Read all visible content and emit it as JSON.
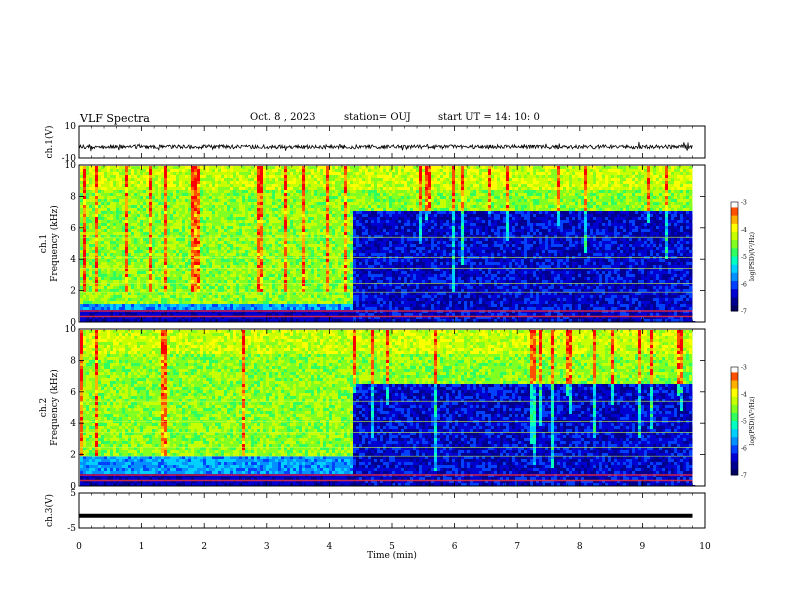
{
  "header": {
    "title": "VLF Spectra",
    "date": "Oct. 8 , 2023",
    "station": "station= OUJ",
    "start_ut": "start UT = 14: 10: 0"
  },
  "colorbar": {
    "label": "log(PSD)(V²/Hz)",
    "ticks": [
      "-3",
      "-4",
      "-5",
      "-6",
      "-7"
    ],
    "colors": [
      "#000080",
      "#0000ff",
      "#00a0ff",
      "#00ffd0",
      "#40ff40",
      "#c0ff00",
      "#ffff00",
      "#ff8000",
      "#ff0000",
      "#ffffff"
    ]
  },
  "chart_data": [
    {
      "type": "line",
      "ylabel": "ch.1(V)",
      "ytick_labels": [
        "10",
        "-10"
      ],
      "ylim": [
        -10,
        10
      ],
      "xlim": [
        0,
        10
      ],
      "description_level": -3,
      "series": [
        {
          "x": [
            0,
            9.8
          ],
          "y": [
            -3,
            -3
          ]
        }
      ]
    },
    {
      "type": "heatmap",
      "ylabel": "ch.1\nFrequency (kHz)",
      "ytick_labels": [
        "0",
        "2",
        "4",
        "6",
        "8",
        "10"
      ],
      "ylim": [
        0,
        10
      ],
      "xlim": [
        0,
        10
      ],
      "segments": [
        {
          "x_range": [
            0,
            4.35
          ],
          "level": "high",
          "freq_range": [
            1.2,
            10
          ]
        },
        {
          "x_range": [
            4.35,
            9.8
          ],
          "level": "low",
          "freq_range": [
            0,
            7.2
          ]
        }
      ]
    },
    {
      "type": "heatmap",
      "ylabel": "ch.2\nFrequency (kHz)",
      "ytick_labels": [
        "0",
        "2",
        "4",
        "6",
        "8",
        "10"
      ],
      "ylim": [
        0,
        10
      ],
      "xlim": [
        0,
        10
      ],
      "segments": [
        {
          "x_range": [
            0,
            4.35
          ],
          "level": "high",
          "freq_range": [
            2,
            10
          ]
        },
        {
          "x_range": [
            4.35,
            9.8
          ],
          "level": "low",
          "freq_range": [
            0,
            6.5
          ]
        }
      ]
    },
    {
      "type": "line",
      "ylabel": "ch.3(V)",
      "ytick_labels": [
        "5",
        "-5"
      ],
      "ylim": [
        -5,
        5
      ],
      "xlim": [
        0,
        10
      ],
      "series": [
        {
          "x": [
            0,
            9.8
          ],
          "y": [
            -1.5,
            -1.5
          ]
        }
      ]
    }
  ],
  "xaxis": {
    "label": "Time (min)",
    "ticks": [
      "0",
      "1",
      "2",
      "3",
      "4",
      "5",
      "6",
      "7",
      "8",
      "9",
      "10"
    ]
  }
}
